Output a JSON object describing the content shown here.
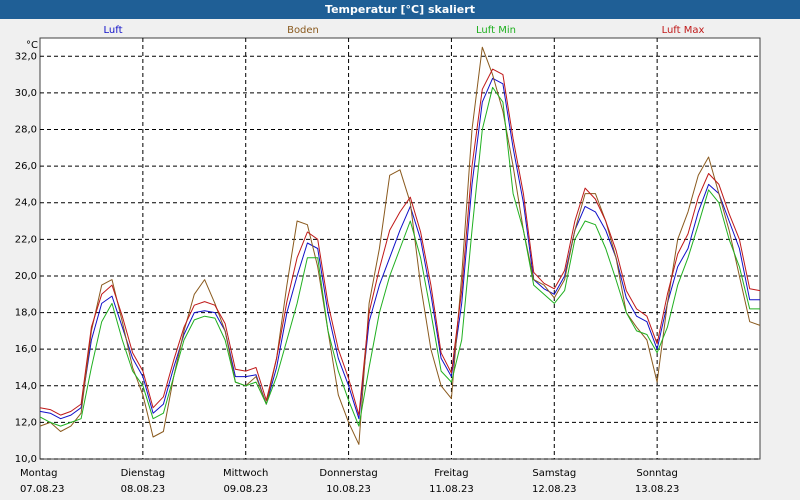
{
  "window": {
    "title": "Temperatur [°C] skaliert"
  },
  "chart_data": {
    "type": "line",
    "title": "Temperatur [°C] skaliert",
    "ylabel": "°C",
    "ylim": [
      10.0,
      33.0
    ],
    "yticks": [
      "10,0",
      "12,0",
      "14,0",
      "16,0",
      "18,0",
      "20,0",
      "22,0",
      "24,0",
      "26,0",
      "28,0",
      "30,0",
      "32,0"
    ],
    "xlim": [
      0,
      7
    ],
    "days": [
      {
        "weekday": "Montag",
        "date": "07.08.23"
      },
      {
        "weekday": "Dienstag",
        "date": "08.08.23"
      },
      {
        "weekday": "Mittwoch",
        "date": "09.08.23"
      },
      {
        "weekday": "Donnerstag",
        "date": "10.08.23"
      },
      {
        "weekday": "Freitag",
        "date": "11.08.23"
      },
      {
        "weekday": "Samstag",
        "date": "12.08.23"
      },
      {
        "weekday": "Sonntag",
        "date": "13.08.23"
      }
    ],
    "grid": true,
    "legend_position": "top",
    "series": [
      {
        "name": "Luft",
        "color": "#1010c8",
        "x": [
          0,
          0.1,
          0.2,
          0.3,
          0.4,
          0.5,
          0.6,
          0.7,
          0.8,
          0.9,
          1.0,
          1.1,
          1.2,
          1.3,
          1.4,
          1.5,
          1.6,
          1.7,
          1.8,
          1.9,
          2.0,
          2.1,
          2.2,
          2.3,
          2.4,
          2.5,
          2.6,
          2.7,
          2.8,
          2.9,
          3.0,
          3.1,
          3.2,
          3.3,
          3.4,
          3.5,
          3.6,
          3.7,
          3.8,
          3.9,
          4.0,
          4.1,
          4.2,
          4.3,
          4.4,
          4.5,
          4.6,
          4.7,
          4.8,
          4.9,
          5.0,
          5.1,
          5.2,
          5.3,
          5.4,
          5.5,
          5.6,
          5.7,
          5.8,
          5.9,
          6.0,
          6.1,
          6.2,
          6.3,
          6.4,
          6.5,
          6.6,
          6.7,
          6.8,
          6.9,
          7.0
        ],
        "values": [
          12.6,
          12.5,
          12.2,
          12.4,
          12.8,
          16.5,
          18.5,
          18.9,
          17.2,
          15.5,
          14.5,
          12.5,
          13.0,
          15.0,
          16.8,
          18.0,
          18.1,
          18.0,
          17.0,
          14.5,
          14.5,
          14.6,
          13.0,
          15.0,
          18.0,
          20.0,
          21.8,
          21.5,
          18.0,
          15.5,
          14.0,
          12.2,
          17.5,
          19.5,
          21.0,
          22.5,
          23.8,
          22.0,
          19.0,
          15.5,
          14.5,
          18.5,
          25.0,
          29.5,
          30.8,
          30.5,
          27.0,
          24.0,
          19.8,
          19.3,
          19.0,
          20.0,
          22.5,
          23.8,
          23.5,
          22.5,
          21.0,
          18.8,
          17.8,
          17.5,
          16.0,
          18.5,
          20.5,
          21.5,
          23.5,
          25.0,
          24.5,
          23.0,
          21.5,
          18.7,
          18.7
        ]
      },
      {
        "name": "Boden",
        "color": "#8a5a1e",
        "x": [
          0,
          0.1,
          0.2,
          0.3,
          0.4,
          0.5,
          0.6,
          0.7,
          0.8,
          0.9,
          1.0,
          1.1,
          1.2,
          1.3,
          1.4,
          1.5,
          1.6,
          1.7,
          1.8,
          1.9,
          2.0,
          2.1,
          2.2,
          2.3,
          2.4,
          2.5,
          2.6,
          2.7,
          2.8,
          2.9,
          3.0,
          3.1,
          3.2,
          3.3,
          3.4,
          3.5,
          3.6,
          3.7,
          3.8,
          3.9,
          4.0,
          4.1,
          4.2,
          4.3,
          4.4,
          4.5,
          4.6,
          4.7,
          4.8,
          4.9,
          5.0,
          5.1,
          5.2,
          5.3,
          5.4,
          5.5,
          5.6,
          5.7,
          5.8,
          5.9,
          6.0,
          6.1,
          6.2,
          6.3,
          6.4,
          6.5,
          6.6,
          6.7,
          6.8,
          6.9,
          7.0
        ],
        "values": [
          11.8,
          12.0,
          11.5,
          11.8,
          12.5,
          17.0,
          19.5,
          19.8,
          17.5,
          15.0,
          13.5,
          11.2,
          11.5,
          14.5,
          17.0,
          19.0,
          19.8,
          18.5,
          17.0,
          14.2,
          14.0,
          14.5,
          13.0,
          15.5,
          19.5,
          23.0,
          22.8,
          20.5,
          17.0,
          13.5,
          12.0,
          10.8,
          18.5,
          21.5,
          25.5,
          25.8,
          24.0,
          19.5,
          16.0,
          14.0,
          13.3,
          20.0,
          28.0,
          32.5,
          31.0,
          29.0,
          26.0,
          22.5,
          19.8,
          19.5,
          18.8,
          19.8,
          22.5,
          24.5,
          24.5,
          23.0,
          21.0,
          18.0,
          17.2,
          16.5,
          14.2,
          18.5,
          22.0,
          23.5,
          25.5,
          26.5,
          24.5,
          22.5,
          20.0,
          17.5,
          17.3
        ]
      },
      {
        "name": "Luft Min",
        "color": "#20b020",
        "x": [
          0,
          0.1,
          0.2,
          0.3,
          0.4,
          0.5,
          0.6,
          0.7,
          0.8,
          0.9,
          1.0,
          1.1,
          1.2,
          1.3,
          1.4,
          1.5,
          1.6,
          1.7,
          1.8,
          1.9,
          2.0,
          2.1,
          2.2,
          2.3,
          2.4,
          2.5,
          2.6,
          2.7,
          2.8,
          2.9,
          3.0,
          3.1,
          3.2,
          3.3,
          3.4,
          3.5,
          3.6,
          3.7,
          3.8,
          3.9,
          4.0,
          4.1,
          4.2,
          4.3,
          4.4,
          4.5,
          4.6,
          4.7,
          4.8,
          4.9,
          5.0,
          5.1,
          5.2,
          5.3,
          5.4,
          5.5,
          5.6,
          5.7,
          5.8,
          5.9,
          6.0,
          6.1,
          6.2,
          6.3,
          6.4,
          6.5,
          6.6,
          6.7,
          6.8,
          6.9,
          7.0
        ],
        "values": [
          12.3,
          12.0,
          11.8,
          12.0,
          12.2,
          15.0,
          17.5,
          18.5,
          16.5,
          14.8,
          14.0,
          12.2,
          12.5,
          14.5,
          16.5,
          17.6,
          17.8,
          17.7,
          16.5,
          14.2,
          14.0,
          14.2,
          13.0,
          14.5,
          16.5,
          18.5,
          21.0,
          21.0,
          17.0,
          14.8,
          13.2,
          11.8,
          15.0,
          18.0,
          20.0,
          21.5,
          23.0,
          21.0,
          18.0,
          14.8,
          14.2,
          16.5,
          22.5,
          28.0,
          30.3,
          29.5,
          24.5,
          22.5,
          19.5,
          19.0,
          18.5,
          19.2,
          22.0,
          23.0,
          22.8,
          21.5,
          19.8,
          18.0,
          17.0,
          16.8,
          15.8,
          17.2,
          19.5,
          21.0,
          22.8,
          24.7,
          24.0,
          22.0,
          20.5,
          18.2,
          18.2
        ]
      },
      {
        "name": "Luft Max",
        "color": "#c01818",
        "x": [
          0,
          0.1,
          0.2,
          0.3,
          0.4,
          0.5,
          0.6,
          0.7,
          0.8,
          0.9,
          1.0,
          1.1,
          1.2,
          1.3,
          1.4,
          1.5,
          1.6,
          1.7,
          1.8,
          1.9,
          2.0,
          2.1,
          2.2,
          2.3,
          2.4,
          2.5,
          2.6,
          2.7,
          2.8,
          2.9,
          3.0,
          3.1,
          3.2,
          3.3,
          3.4,
          3.5,
          3.6,
          3.7,
          3.8,
          3.9,
          4.0,
          4.1,
          4.2,
          4.3,
          4.4,
          4.5,
          4.6,
          4.7,
          4.8,
          4.9,
          5.0,
          5.1,
          5.2,
          5.3,
          5.4,
          5.5,
          5.6,
          5.7,
          5.8,
          5.9,
          6.0,
          6.1,
          6.2,
          6.3,
          6.4,
          6.5,
          6.6,
          6.7,
          6.8,
          6.9,
          7.0
        ],
        "values": [
          12.8,
          12.7,
          12.4,
          12.6,
          13.0,
          17.2,
          19.0,
          19.5,
          17.8,
          15.8,
          14.8,
          12.8,
          13.4,
          15.4,
          17.2,
          18.4,
          18.6,
          18.4,
          17.4,
          14.9,
          14.8,
          15.0,
          13.2,
          15.5,
          18.6,
          21.0,
          22.4,
          22.0,
          18.5,
          16.0,
          14.4,
          12.4,
          18.0,
          20.4,
          22.5,
          23.5,
          24.3,
          22.4,
          19.5,
          15.8,
          14.7,
          19.2,
          26.0,
          30.2,
          31.3,
          31.0,
          27.5,
          24.5,
          20.2,
          19.6,
          19.3,
          20.3,
          23.0,
          24.8,
          24.2,
          23.0,
          21.4,
          19.2,
          18.2,
          17.8,
          16.3,
          19.0,
          21.2,
          22.3,
          24.3,
          25.6,
          25.0,
          23.4,
          22.0,
          19.3,
          19.2
        ]
      }
    ]
  }
}
